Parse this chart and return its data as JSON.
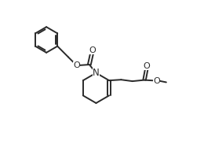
{
  "background": "#ffffff",
  "line_color": "#2a2a2a",
  "line_width": 1.4,
  "figsize": [
    2.6,
    1.93
  ],
  "dpi": 100,
  "xlim": [
    0,
    13
  ],
  "ylim": [
    0,
    10
  ]
}
